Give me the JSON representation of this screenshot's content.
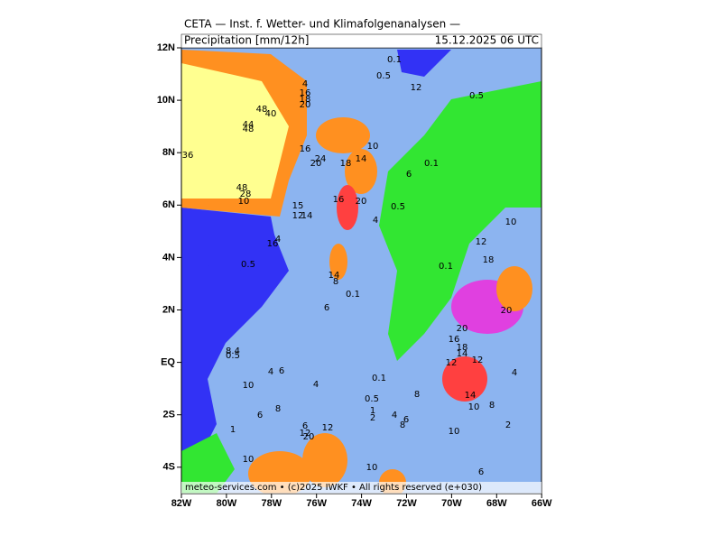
{
  "header": {
    "title": "CETA — Inst. f. Wetter- und Klimafolgenanalysen —",
    "field": "Precipitation [mm/12h]",
    "date": "15.12.2025 06 UTC"
  },
  "map": {
    "lat_labels": [
      "12N",
      "10N",
      "8N",
      "6N",
      "4N",
      "2N",
      "EQ",
      "2S",
      "4S"
    ],
    "lon_labels": [
      "82W",
      "80W",
      "78W",
      "76W",
      "74W",
      "72W",
      "70W",
      "68W",
      "66W"
    ],
    "contour_labels": [
      "0.1",
      "0.5",
      "12",
      "0.5",
      "4",
      "16",
      "18",
      "20",
      "48",
      "40",
      "44",
      "48",
      "36",
      "10",
      "16",
      "24",
      "20",
      "18",
      "14",
      "6",
      "0.1",
      "48",
      "28",
      "10",
      "16",
      "20",
      "15",
      "12",
      "14",
      "4",
      "0.5",
      "4",
      "16",
      "0.5",
      "14",
      "8",
      "0.1",
      "6",
      "0.1",
      "12",
      "18",
      "10",
      "20",
      "20",
      "16",
      "18",
      "14",
      "12",
      "12",
      "4",
      "8.4",
      "0.5",
      "4",
      "6",
      "10",
      "4",
      "0.1",
      "0.5",
      "8",
      "14",
      "10",
      "8",
      "6",
      "8",
      "1",
      "2",
      "4",
      "6",
      "8",
      "2",
      "1",
      "6",
      "12",
      "20",
      "12",
      "10",
      "10",
      "10",
      "6"
    ]
  },
  "footer": "meteo-services.com • (c)2025 IWKF • All rights reserved (e+030)"
}
